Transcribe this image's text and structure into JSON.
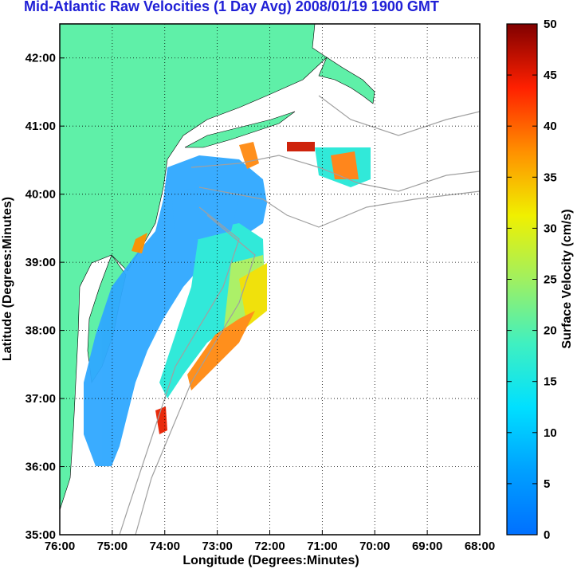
{
  "title": "Mid-Atlantic Raw Velocities (1 Day Avg) 2008/01/19 1900 GMT",
  "xlabel": "Longitude (Degrees:Minutes)",
  "ylabel": "Latitude (Degrees:Minutes)",
  "colorbar_label": "Surface Velocity (cm/s)",
  "colors": {
    "land": "#5ff0a8",
    "background": "#ffffff",
    "bathymetry": "#a0a0a0",
    "title": "#1f1fd6",
    "grid": "#000000"
  },
  "chart_data": {
    "type": "heatmap",
    "x_ticks": [
      "76:00",
      "75:00",
      "74:00",
      "73:00",
      "72:00",
      "71:00",
      "70:00",
      "69:00",
      "68:00"
    ],
    "y_ticks": [
      "35:00",
      "36:00",
      "37:00",
      "38:00",
      "39:00",
      "40:00",
      "41:00",
      "42:00"
    ],
    "xlim": [
      -76,
      -68
    ],
    "ylim": [
      35,
      42.5
    ],
    "grid": true,
    "colorbar": {
      "ticks": [
        "0",
        "5",
        "10",
        "15",
        "20",
        "25",
        "30",
        "35",
        "40",
        "45",
        "50"
      ],
      "range": [
        0,
        50
      ],
      "colormap": "jet"
    }
  }
}
